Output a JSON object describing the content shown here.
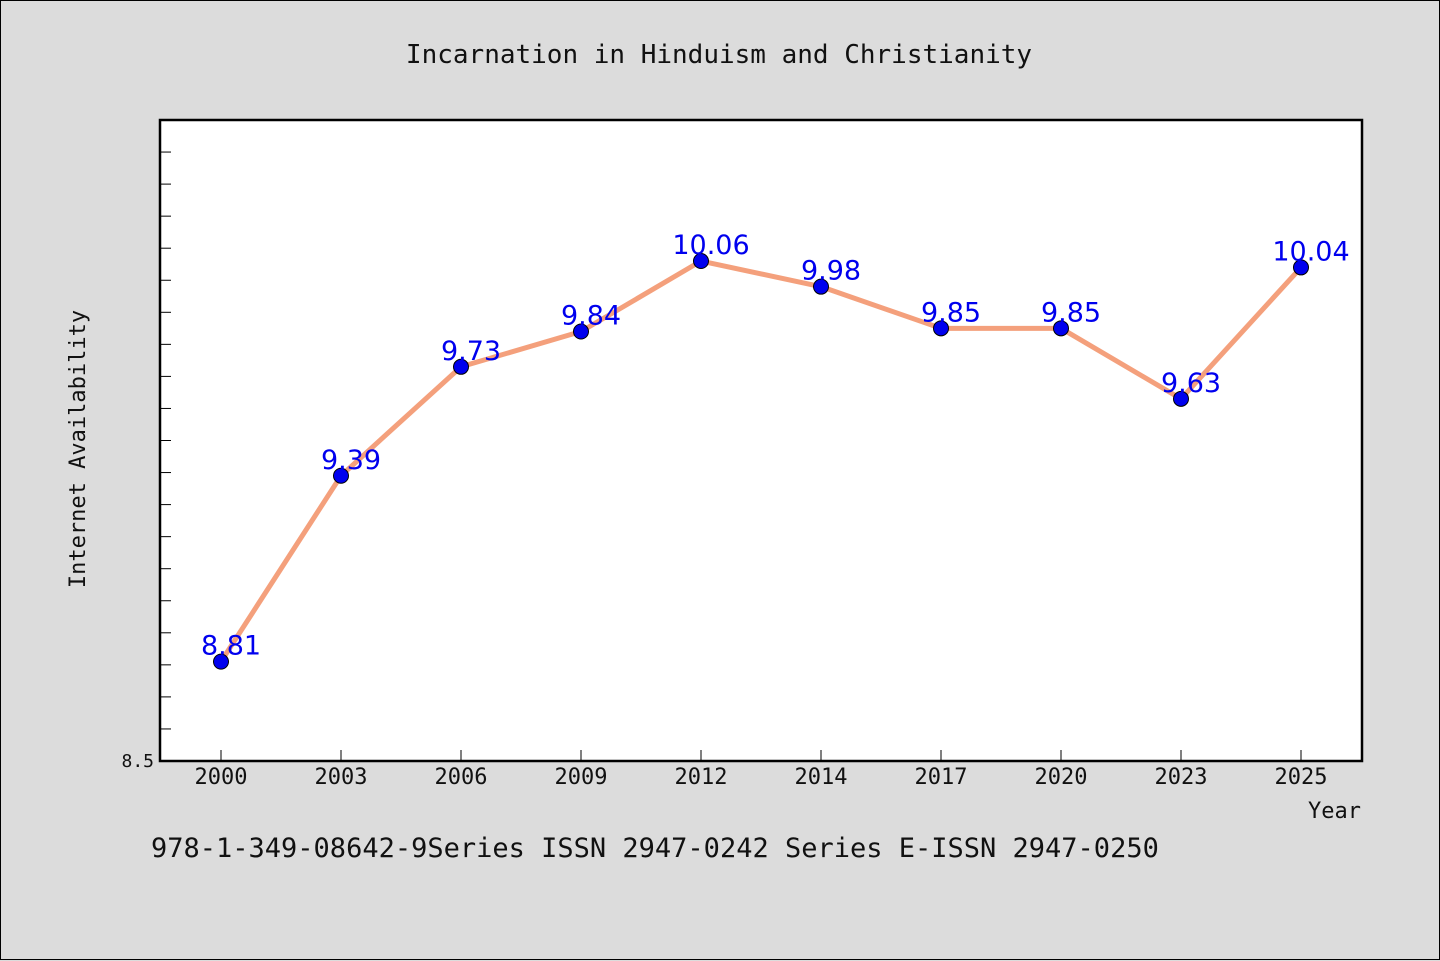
{
  "chart_data": {
    "type": "line",
    "title": "Incarnation in Hinduism and Christianity",
    "xlabel": "Year",
    "ylabel": "Internet Availability",
    "categories": [
      "2000",
      "2003",
      "2006",
      "2009",
      "2012",
      "2014",
      "2017",
      "2020",
      "2023",
      "2025"
    ],
    "series": [
      {
        "values": [
          8.81,
          9.39,
          9.73,
          9.84,
          10.06,
          9.98,
          9.85,
          9.85,
          9.63,
          10.04
        ],
        "labels": [
          "8.81",
          "9.39",
          "9.73",
          "9.84",
          "10.06",
          "9.98",
          "9.85",
          "9.85",
          "9.63",
          "10.04"
        ],
        "line_color": "#f4a07c",
        "marker_color": "#0000ee",
        "label_color": "#0000ee"
      }
    ],
    "ylim": [
      8.5,
      10.5
    ],
    "y_tick_labels": [
      {
        "value": 8.5,
        "label": "8.5"
      }
    ],
    "y_minor_step": 0.1,
    "grid": false,
    "legend": "none"
  },
  "footer": {
    "text": "978-1-349-08642-9Series ISSN 2947-0242 Series E-ISSN 2947-0250"
  }
}
